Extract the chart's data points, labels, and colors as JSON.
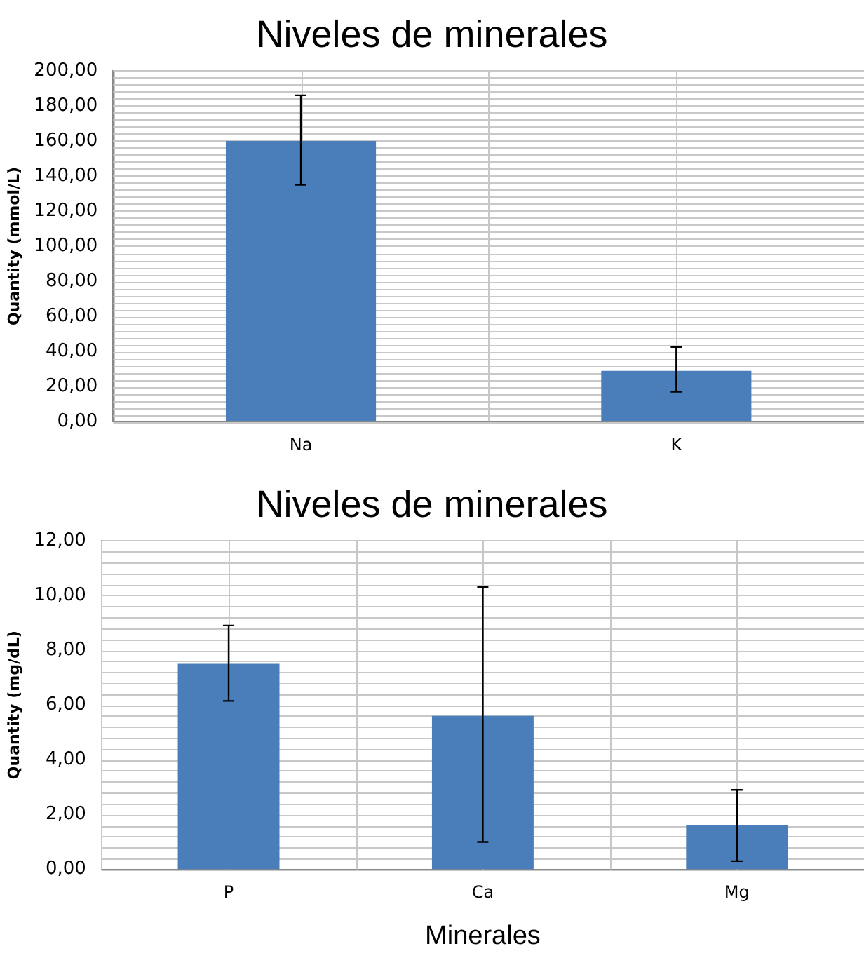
{
  "chart_data": [
    {
      "type": "bar",
      "title": "Niveles de minerales",
      "ylabel": "Quantity (mmol/L)",
      "categories": [
        "Na",
        "K"
      ],
      "values": [
        160,
        29
      ],
      "errors": [
        [
          135,
          186
        ],
        [
          17,
          42.5
        ]
      ],
      "color": "#4a7ebb",
      "ylim": [
        0,
        200
      ],
      "yticks": [
        {
          "value": 0,
          "label": "0,00"
        },
        {
          "value": 20,
          "label": "20,00"
        },
        {
          "value": 40,
          "label": "40,00"
        },
        {
          "value": 60,
          "label": "60,00"
        },
        {
          "value": 80,
          "label": "80,00"
        },
        {
          "value": 100,
          "label": "100,00"
        },
        {
          "value": 120,
          "label": "120,00"
        },
        {
          "value": 140,
          "label": "140,00"
        },
        {
          "value": 160,
          "label": "160,00"
        },
        {
          "value": 180,
          "label": "180,00"
        },
        {
          "value": 200,
          "label": "200,00"
        }
      ],
      "grid": true
    },
    {
      "type": "bar",
      "title": "Niveles de minerales",
      "xlabel": "Minerales",
      "ylabel": "Quantity (mg/dL)",
      "categories": [
        "P",
        "Ca",
        "Mg"
      ],
      "values": [
        7.5,
        5.6,
        1.6
      ],
      "errors": [
        [
          6.15,
          8.9
        ],
        [
          1.0,
          10.3
        ],
        [
          0.3,
          2.9
        ]
      ],
      "color": "#4a7ebb",
      "ylim": [
        0,
        12
      ],
      "yticks": [
        {
          "value": 0,
          "label": "0,00"
        },
        {
          "value": 2,
          "label": "2,00"
        },
        {
          "value": 4,
          "label": "4,00"
        },
        {
          "value": 6,
          "label": "6,00"
        },
        {
          "value": 8,
          "label": "8,00"
        },
        {
          "value": 10,
          "label": "10,00"
        },
        {
          "value": 12,
          "label": "12,00"
        }
      ],
      "grid": true
    }
  ]
}
